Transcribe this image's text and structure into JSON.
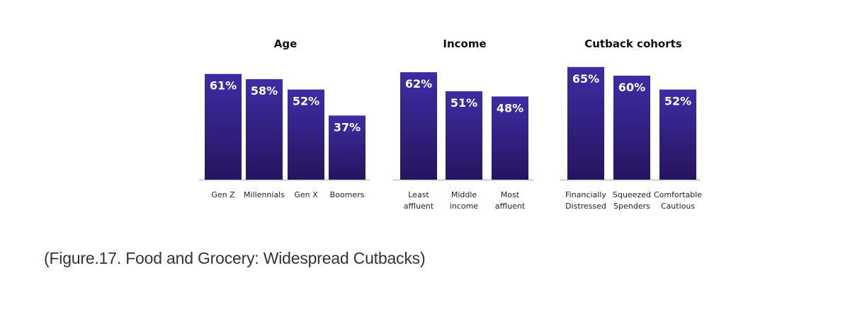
{
  "chart_data": [
    {
      "type": "bar",
      "title": "Age",
      "categories": [
        [
          "Gen Z"
        ],
        [
          "Millennials"
        ],
        [
          "Gen X"
        ],
        [
          "Boomers"
        ]
      ],
      "values": [
        61,
        58,
        52,
        37
      ],
      "value_labels": [
        "61%",
        "58%",
        "52%",
        "37%"
      ]
    },
    {
      "type": "bar",
      "title": "Income",
      "categories": [
        [
          "Least",
          "affluent"
        ],
        [
          "Middle",
          "income"
        ],
        [
          "Most",
          "affluent"
        ]
      ],
      "values": [
        62,
        51,
        48
      ],
      "value_labels": [
        "62%",
        "51%",
        "48%"
      ]
    },
    {
      "type": "bar",
      "title": "Cutback cohorts",
      "categories": [
        [
          "Financially",
          "Distressed"
        ],
        [
          "Squeezed",
          "Spenders"
        ],
        [
          "Comfortable",
          "Cautious"
        ]
      ],
      "values": [
        65,
        60,
        52
      ],
      "value_labels": [
        "65%",
        "60%",
        "52%"
      ]
    }
  ],
  "colors": {
    "bar_top": "#3f2ca3",
    "bar_bottom": "#25155f",
    "baseline": "#bbbbbb"
  },
  "caption": "(Figure.17. Food and Grocery: Widespread Cutbacks)"
}
